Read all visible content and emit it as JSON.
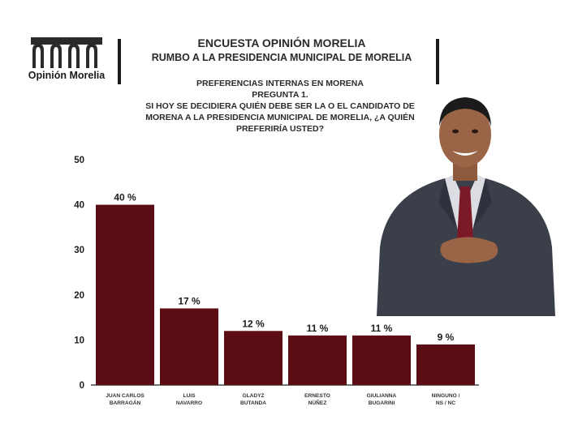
{
  "header": {
    "logo_text": "Opinión Morelia",
    "title": "ENCUESTA OPINIÓN MORELIA",
    "subtitle": "RUMBO A LA PRESIDENCIA MUNICIPAL DE MORELIA"
  },
  "question": {
    "line1": "PREFERENCIAS INTERNAS EN MORENA",
    "line2": "PREGUNTA 1.",
    "line3": "SI HOY SE DECIDIERA QUIÉN DEBE SER LA O EL CANDIDATO DE",
    "line4": "MORENA A LA PRESIDENCIA MUNICIPAL DE MORELIA, ¿A QUIÉN",
    "line5": "PREFERIRÍA USTED?"
  },
  "colors": {
    "bar": "#5c0c14",
    "axis": "#222222",
    "text": "#1d1d1d"
  },
  "chart_data": {
    "type": "bar",
    "categories": [
      [
        "JUAN CARLOS",
        "BARRAGÁN"
      ],
      [
        "LUIS",
        "NAVARRO"
      ],
      [
        "GLADYZ",
        "BUTANDA"
      ],
      [
        "ERNESTO",
        "NÚÑEZ"
      ],
      [
        "GIULIANNA",
        "BUGARINI"
      ],
      [
        "NINGUNO /",
        "NS / NC"
      ]
    ],
    "values": [
      40,
      17,
      12,
      11,
      11,
      9
    ],
    "value_labels": [
      "40 %",
      "17 %",
      "12 %",
      "11 %",
      "11 %",
      "9 %"
    ],
    "ylim": [
      0,
      50
    ],
    "yticks": [
      0,
      10,
      20,
      30,
      40,
      50
    ],
    "grid": false
  }
}
